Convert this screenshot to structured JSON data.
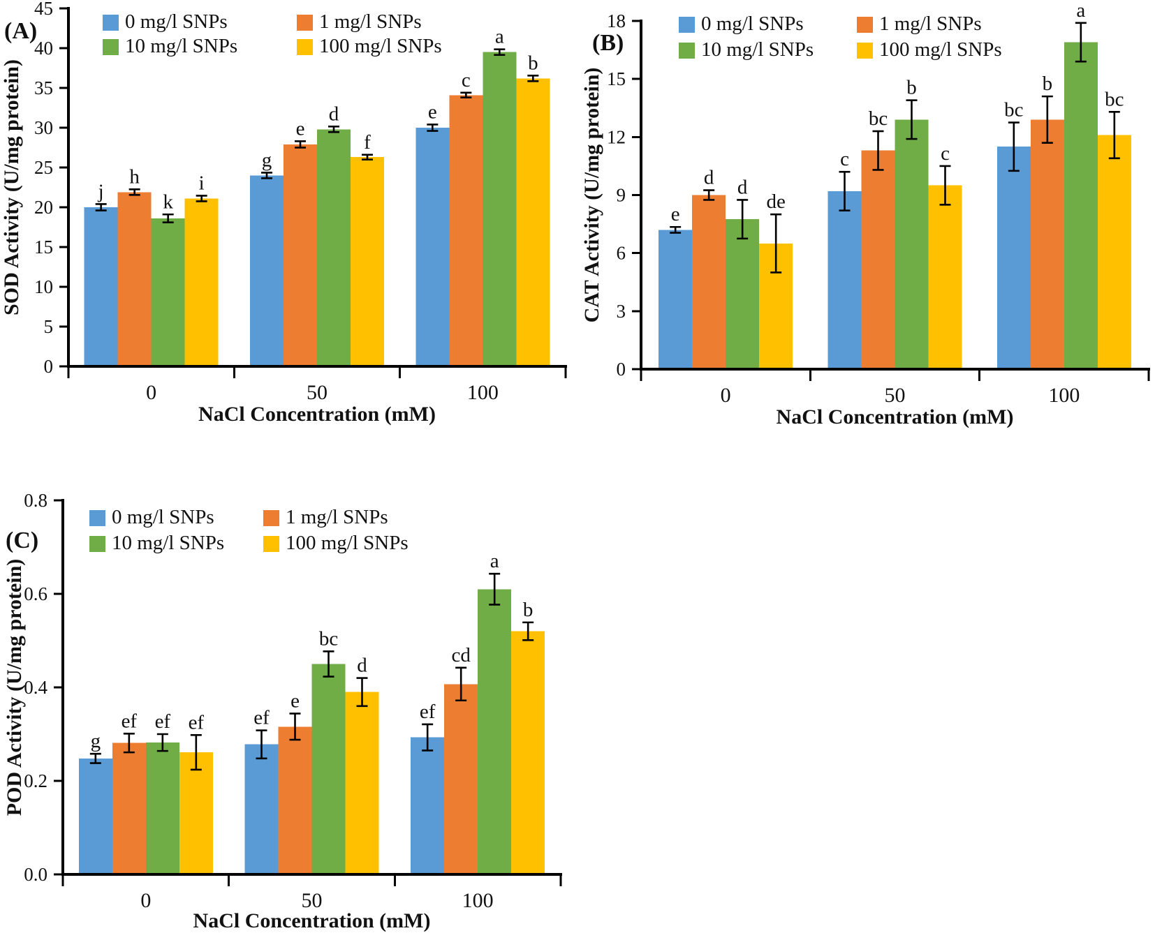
{
  "figure_type": "grouped-bar-figure-3-panels",
  "chart_data": [
    {
      "panel_label": "(A)",
      "type": "bar",
      "title": "",
      "xlabel": "NaCl Concentration (mM)",
      "ylabel": "SOD Activity (U/mg protein)",
      "categories": [
        "0",
        "50",
        "100"
      ],
      "ylim": [
        0,
        45
      ],
      "ytick_step": 5,
      "ytick_decimals": 0,
      "grid": false,
      "legend_position": "top-inside-two-columns",
      "series": [
        {
          "name": "0 mg/l SNPs",
          "color": "#5B9BD5",
          "values": [
            20.0,
            24.0,
            30.0
          ],
          "errors": [
            0.4,
            0.35,
            0.4
          ],
          "letters": [
            "j",
            "g",
            "e"
          ]
        },
        {
          "name": "1 mg/l SNPs",
          "color": "#ED7D31",
          "values": [
            21.9,
            27.9,
            34.1
          ],
          "errors": [
            0.35,
            0.4,
            0.3
          ],
          "letters": [
            "h",
            "e",
            "c"
          ]
        },
        {
          "name": "10 mg/l SNPs",
          "color": "#70AD47",
          "values": [
            18.6,
            29.8,
            39.5
          ],
          "errors": [
            0.5,
            0.35,
            0.35
          ],
          "letters": [
            "k",
            "d",
            "a"
          ]
        },
        {
          "name": "100 mg/l SNPs",
          "color": "#FFC000",
          "values": [
            21.1,
            26.3,
            36.2
          ],
          "errors": [
            0.35,
            0.3,
            0.35
          ],
          "letters": [
            "i",
            "f",
            "b"
          ]
        }
      ]
    },
    {
      "panel_label": "(B)",
      "type": "bar",
      "title": "",
      "xlabel": "NaCl Concentration (mM)",
      "ylabel": "CAT Activity (U/mg protein)",
      "categories": [
        "0",
        "50",
        "100"
      ],
      "ylim": [
        0,
        18
      ],
      "ytick_step": 3,
      "ytick_decimals": 0,
      "grid": false,
      "legend_position": "top-inside-two-columns",
      "series": [
        {
          "name": "0 mg/l SNPs",
          "color": "#5B9BD5",
          "values": [
            7.2,
            9.2,
            11.5
          ],
          "errors": [
            0.15,
            1.0,
            1.25
          ],
          "letters": [
            "e",
            "c",
            "bc"
          ]
        },
        {
          "name": "1 mg/l SNPs",
          "color": "#ED7D31",
          "values": [
            9.0,
            11.3,
            12.9
          ],
          "errors": [
            0.25,
            1.0,
            1.2
          ],
          "letters": [
            "d",
            "bc",
            "b"
          ]
        },
        {
          "name": "10 mg/l SNPs",
          "color": "#70AD47",
          "values": [
            7.75,
            12.9,
            16.9
          ],
          "errors": [
            1.0,
            1.0,
            1.0
          ],
          "letters": [
            "d",
            "b",
            "a"
          ]
        },
        {
          "name": "100 mg/l SNPs",
          "color": "#FFC000",
          "values": [
            6.5,
            9.5,
            12.1
          ],
          "errors": [
            1.5,
            1.0,
            1.2
          ],
          "letters": [
            "de",
            "c",
            "bc"
          ]
        }
      ]
    },
    {
      "panel_label": "(C)",
      "type": "bar",
      "title": "",
      "xlabel": "NaCl Concentration (mM)",
      "ylabel": "POD Activity  (U/mg protein)",
      "categories": [
        "0",
        "50",
        "100"
      ],
      "ylim": [
        0,
        0.8
      ],
      "ytick_step": 0.2,
      "ytick_decimals": 1,
      "grid": false,
      "legend_position": "top-inside-two-columns",
      "series": [
        {
          "name": "0 mg/l SNPs",
          "color": "#5B9BD5",
          "values": [
            0.248,
            0.278,
            0.293
          ],
          "errors": [
            0.01,
            0.03,
            0.028
          ],
          "letters": [
            "g",
            "ef",
            "ef"
          ]
        },
        {
          "name": "1 mg/l SNPs",
          "color": "#ED7D31",
          "values": [
            0.281,
            0.316,
            0.407
          ],
          "errors": [
            0.02,
            0.028,
            0.035
          ],
          "letters": [
            "ef",
            "e",
            "cd"
          ]
        },
        {
          "name": "10 mg/l SNPs",
          "color": "#70AD47",
          "values": [
            0.282,
            0.45,
            0.61
          ],
          "errors": [
            0.018,
            0.027,
            0.033
          ],
          "letters": [
            "ef",
            "bc",
            "a"
          ]
        },
        {
          "name": "100 mg/l SNPs",
          "color": "#FFC000",
          "values": [
            0.261,
            0.39,
            0.52
          ],
          "errors": [
            0.037,
            0.03,
            0.019
          ],
          "letters": [
            "ef",
            "d",
            "b"
          ]
        }
      ]
    }
  ]
}
